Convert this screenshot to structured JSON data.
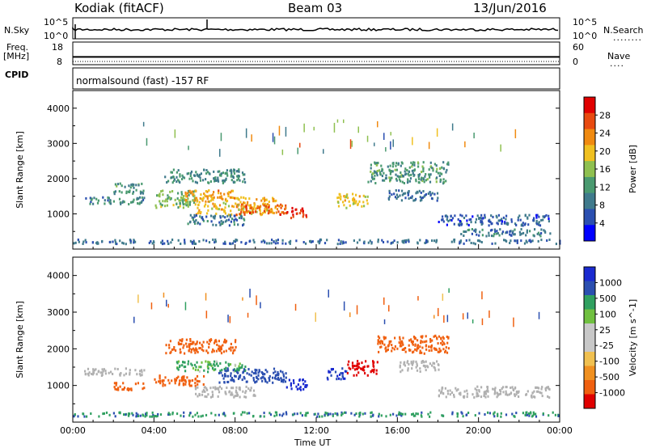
{
  "header": {
    "station": "Kodiak (fitACF)",
    "beam": "Beam 03",
    "date": "13/Jun/2016"
  },
  "top_panels": {
    "nsky": {
      "label": "N.Sky",
      "tick_high": "10^5",
      "tick_low": "10^0"
    },
    "nsearch": {
      "label": "N.Search",
      "tick_high": "10^5",
      "tick_low": "10^0",
      "legend_line": "........"
    },
    "freq": {
      "label_line1": "Freq.",
      "label_line2": "[MHz]",
      "ticks": [
        "18",
        "8"
      ],
      "value": 10
    },
    "nave": {
      "label": "Nave",
      "ticks": [
        "60",
        "0"
      ],
      "legend_line": "...."
    },
    "cpid": {
      "label": "CPID",
      "text": "normalsound (fast) -157 RF"
    }
  },
  "colors": {
    "power_scale": [
      "#0000ff",
      "#2b4fb0",
      "#3f7a8c",
      "#4a9a70",
      "#8fc050",
      "#f0c020",
      "#f08a10",
      "#e84a10",
      "#e00000"
    ],
    "velocity_scale": [
      "#e00000",
      "#f06010",
      "#f09020",
      "#f0c050",
      "#c8c8c8",
      "#c8c8c8",
      "#70c040",
      "#30a060",
      "#2b4fb0",
      "#1a2ad0"
    ],
    "ground_scatter": "#b0b0b0"
  },
  "chart_data": [
    {
      "type": "heatmap",
      "title": "",
      "xlabel": "",
      "ylabel": "Slant Range [km]",
      "xlim": [
        "00:00",
        "24:00"
      ],
      "ylim": [
        0,
        4500
      ],
      "yticks": [
        "1000",
        "2000",
        "3000",
        "4000"
      ],
      "colorbar": {
        "label": "Power [dB]",
        "ticks": [
          "4",
          "8",
          "12",
          "16",
          "20",
          "24",
          "28"
        ],
        "range": [
          0,
          30
        ]
      },
      "regions": [
        {
          "t": [
            0.5,
            3.5
          ],
          "r": [
            1300,
            1500
          ],
          "v": 9
        },
        {
          "t": [
            2.0,
            3.5
          ],
          "r": [
            1600,
            1900
          ],
          "v": 11
        },
        {
          "t": [
            4.0,
            6.0
          ],
          "r": [
            1200,
            1700
          ],
          "v": 14
        },
        {
          "t": [
            5.5,
            8.0
          ],
          "r": [
            1400,
            1700
          ],
          "v": 21
        },
        {
          "t": [
            6.0,
            10.0
          ],
          "r": [
            1000,
            1500
          ],
          "v": 19
        },
        {
          "t": [
            8.0,
            10.5
          ],
          "r": [
            1000,
            1300
          ],
          "v": 24
        },
        {
          "t": [
            10.5,
            11.5
          ],
          "r": [
            900,
            1200
          ],
          "v": 27
        },
        {
          "t": [
            4.5,
            8.5
          ],
          "r": [
            1900,
            2300
          ],
          "v": 10
        },
        {
          "t": [
            5.5,
            8.5
          ],
          "r": [
            700,
            1000
          ],
          "v": 8
        },
        {
          "t": [
            13.0,
            14.5
          ],
          "r": [
            1200,
            1600
          ],
          "v": 18
        },
        {
          "t": [
            14.5,
            18.5
          ],
          "r": [
            1900,
            2500
          ],
          "v": 11
        },
        {
          "t": [
            15.5,
            18.0
          ],
          "r": [
            1400,
            1700
          ],
          "v": 7
        },
        {
          "t": [
            18.0,
            23.5
          ],
          "r": [
            700,
            1000
          ],
          "v": 6
        },
        {
          "t": [
            19.0,
            23.5
          ],
          "r": [
            400,
            600
          ],
          "v": 8
        },
        {
          "t": [
            0.0,
            24.0
          ],
          "r": [
            180,
            300
          ],
          "v": 7
        }
      ]
    },
    {
      "type": "heatmap",
      "title": "",
      "xlabel": "Time UT",
      "ylabel": "Slant Range [km]",
      "xlim": [
        "00:00",
        "24:00"
      ],
      "ylim": [
        0,
        4500
      ],
      "yticks": [
        "1000",
        "2000",
        "3000",
        "4000"
      ],
      "xticks": [
        "00:00",
        "04:00",
        "08:00",
        "12:00",
        "16:00",
        "20:00",
        "00:00"
      ],
      "colorbar": {
        "label": "Velocity [m s^-1]",
        "ticks": [
          "-1000",
          "-500",
          "-100",
          "-25",
          "25",
          "100",
          "500",
          "1000"
        ],
        "range": [
          -1250,
          1250
        ]
      },
      "regions": [
        {
          "t": [
            0.5,
            3.5
          ],
          "r": [
            1300,
            1500
          ],
          "v": 0,
          "ground": true
        },
        {
          "t": [
            2.0,
            3.5
          ],
          "r": [
            900,
            1100
          ],
          "v": -150
        },
        {
          "t": [
            4.0,
            6.5
          ],
          "r": [
            1000,
            1300
          ],
          "v": -200
        },
        {
          "t": [
            5.0,
            8.5
          ],
          "r": [
            1400,
            1700
          ],
          "v": 30
        },
        {
          "t": [
            7.0,
            10.5
          ],
          "r": [
            1100,
            1500
          ],
          "v": 200
        },
        {
          "t": [
            6.0,
            9.0
          ],
          "r": [
            700,
            1000
          ],
          "v": 0,
          "ground": true
        },
        {
          "t": [
            10.5,
            11.5
          ],
          "r": [
            900,
            1200
          ],
          "v": 400
        },
        {
          "t": [
            4.5,
            8.0
          ],
          "r": [
            1900,
            2300
          ],
          "v": -120
        },
        {
          "t": [
            12.5,
            13.5
          ],
          "r": [
            1200,
            1500
          ],
          "v": 300
        },
        {
          "t": [
            13.5,
            15.0
          ],
          "r": [
            1300,
            1700
          ],
          "v": -400
        },
        {
          "t": [
            15.0,
            18.5
          ],
          "r": [
            1900,
            2400
          ],
          "v": -200
        },
        {
          "t": [
            16.0,
            18.0
          ],
          "r": [
            1400,
            1700
          ],
          "v": 0,
          "ground": true
        },
        {
          "t": [
            18.0,
            23.5
          ],
          "r": [
            700,
            1000
          ],
          "v": 0,
          "ground": true
        },
        {
          "t": [
            0.0,
            24.0
          ],
          "r": [
            180,
            300
          ],
          "v": 60
        }
      ]
    }
  ]
}
